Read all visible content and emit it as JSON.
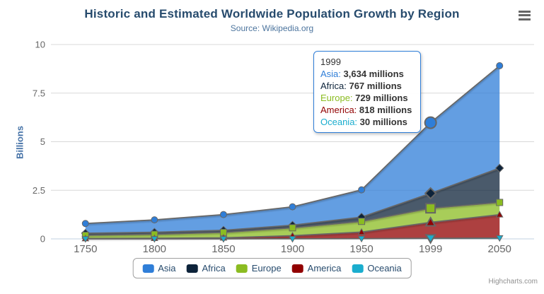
{
  "chart": {
    "title": "Historic and Estimated Worldwide Population Growth by Region",
    "subtitle": "Source: Wikipedia.org",
    "credits": "Highcharts.com"
  },
  "export_menu": {
    "icon": "hamburger-icon"
  },
  "y_axis": {
    "title": "Billions",
    "ticks": [
      "0",
      "2.5",
      "5",
      "7.5",
      "10"
    ]
  },
  "x_axis": {
    "categories": [
      "1750",
      "1800",
      "1850",
      "1900",
      "1950",
      "1999",
      "2050"
    ]
  },
  "tooltip": {
    "header": "1999",
    "border_color": "#2f7ed8",
    "rows": [
      {
        "name": "Asia",
        "label": "Asia:",
        "value": "3,634 millions",
        "color": "#2f7ed8"
      },
      {
        "name": "Africa",
        "label": "Africa:",
        "value": "767 millions",
        "color": "#0d233a"
      },
      {
        "name": "Europe",
        "label": "Europe:",
        "value": "729 millions",
        "color": "#8bbc21"
      },
      {
        "name": "America",
        "label": "America:",
        "value": "818 millions",
        "color": "#910000"
      },
      {
        "name": "Oceania",
        "label": "Oceania:",
        "value": "30 millions",
        "color": "#1aadce"
      }
    ]
  },
  "legend": {
    "items": [
      {
        "label": "Asia",
        "color": "#2f7ed8"
      },
      {
        "label": "Africa",
        "color": "#0d233a"
      },
      {
        "label": "Europe",
        "color": "#8bbc21"
      },
      {
        "label": "America",
        "color": "#910000"
      },
      {
        "label": "Oceania",
        "color": "#1aadce"
      }
    ]
  },
  "chart_data": {
    "type": "area",
    "stacking": "normal",
    "title": "Historic and Estimated Worldwide Population Growth by Region",
    "subtitle": "Source: Wikipedia.org",
    "xlabel": "",
    "ylabel": "Billions",
    "unit": "millions",
    "ylim": [
      0,
      10
    ],
    "yticks": [
      0,
      2.5,
      5,
      7.5,
      10
    ],
    "grid": true,
    "legend_position": "bottom",
    "line_color": "#666666",
    "fill_opacity": 0.75,
    "hover_index": 5,
    "categories": [
      "1750",
      "1800",
      "1850",
      "1900",
      "1950",
      "1999",
      "2050"
    ],
    "series": [
      {
        "name": "Asia",
        "color": "#2f7ed8",
        "marker": "circle",
        "values": [
          502,
          635,
          809,
          947,
          1402,
          3634,
          5268
        ]
      },
      {
        "name": "Africa",
        "color": "#0d233a",
        "marker": "diamond",
        "values": [
          106,
          107,
          111,
          133,
          221,
          767,
          1766
        ]
      },
      {
        "name": "Europe",
        "color": "#8bbc21",
        "marker": "square",
        "values": [
          163,
          203,
          276,
          408,
          547,
          729,
          628
        ]
      },
      {
        "name": "America",
        "color": "#910000",
        "marker": "triangle",
        "values": [
          18,
          31,
          54,
          156,
          339,
          818,
          1201
        ]
      },
      {
        "name": "Oceania",
        "color": "#1aadce",
        "marker": "triangle-down",
        "values": [
          2,
          2,
          2,
          6,
          13,
          30,
          46
        ]
      }
    ]
  }
}
